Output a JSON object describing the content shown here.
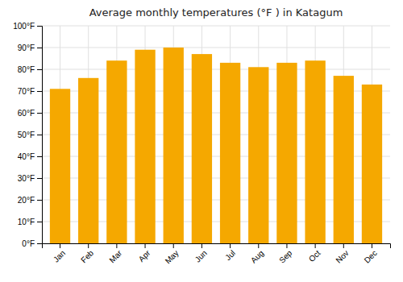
{
  "chart_data": {
    "type": "bar",
    "title": "Average monthly temperatures (°F ) in Katagum",
    "categories": [
      "Jan",
      "Feb",
      "Mar",
      "Apr",
      "May",
      "Jun",
      "Jul",
      "Aug",
      "Sep",
      "Oct",
      "Nov",
      "Dec"
    ],
    "values": [
      71,
      76,
      84,
      89,
      90,
      87,
      83,
      81,
      83,
      84,
      77,
      73
    ],
    "color": "#F5A800",
    "ylim": [
      0,
      100
    ],
    "yticks": [
      {
        "value": 0,
        "label": "0°F"
      },
      {
        "value": 10,
        "label": "10°F"
      },
      {
        "value": 20,
        "label": "20°F"
      },
      {
        "value": 30,
        "label": "30°F"
      },
      {
        "value": 40,
        "label": "40°F"
      },
      {
        "value": 50,
        "label": "50°F"
      },
      {
        "value": 60,
        "label": "60°F"
      },
      {
        "value": 70,
        "label": "70°F"
      },
      {
        "value": 80,
        "label": "80°F"
      },
      {
        "value": 90,
        "label": "90°F"
      },
      {
        "value": 100,
        "label": "100°F"
      }
    ],
    "grid": true
  }
}
